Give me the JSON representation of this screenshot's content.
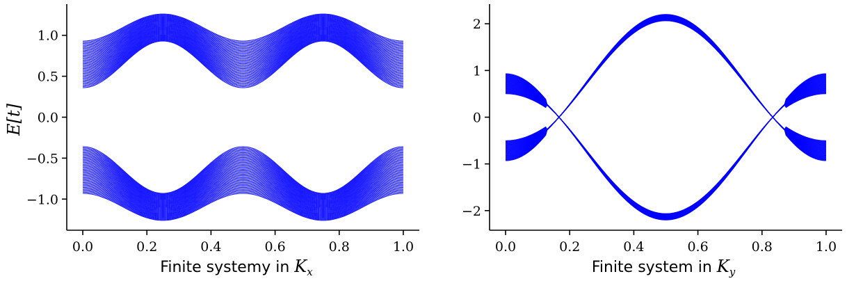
{
  "chart_data": [
    {
      "type": "line",
      "id": "left",
      "xlabel_text": "Finite systemy in ",
      "xlabel_math": "K",
      "xlabel_sub": "x",
      "ylabel_math": "E[t]",
      "xlim": [
        -0.05,
        1.05
      ],
      "ylim": [
        -1.38,
        1.38
      ],
      "xticks": [
        0.0,
        0.2,
        0.4,
        0.6,
        0.8,
        1.0
      ],
      "xtick_labels": [
        "0.0",
        "0.2",
        "0.4",
        "0.6",
        "0.8",
        "1.0"
      ],
      "yticks": [
        -1.0,
        -0.5,
        0.0,
        0.5,
        1.0
      ],
      "ytick_labels": [
        "−1.0",
        "−0.5",
        "0.0",
        "0.5",
        "1.0"
      ],
      "x_range": [
        0.0,
        1.0
      ],
      "series_color": "#0000ff",
      "band_count": 40,
      "bands": {
        "upper_band_top": {
          "min": 0.93,
          "max": 1.26
        },
        "upper_band_bottom": {
          "min": 0.36,
          "max": 0.93
        },
        "lower_band_top": {
          "min": -0.93,
          "max": -0.36
        },
        "lower_band_bottom": {
          "min": -1.26,
          "max": -0.93
        },
        "period": 0.5
      },
      "grid": false,
      "legend": "none"
    },
    {
      "type": "line",
      "id": "right",
      "xlabel_text": "Finite system in ",
      "xlabel_math": "K",
      "xlabel_sub": "y",
      "xlim": [
        -0.05,
        1.05
      ],
      "ylim": [
        -2.42,
        2.42
      ],
      "xticks": [
        0.0,
        0.2,
        0.4,
        0.6,
        0.8,
        1.0
      ],
      "xtick_labels": [
        "0.0",
        "0.2",
        "0.4",
        "0.6",
        "0.8",
        "1.0"
      ],
      "yticks": [
        -2,
        -1,
        0,
        1,
        2
      ],
      "ytick_labels": [
        "−2",
        "−1",
        "0",
        "1",
        "2"
      ],
      "x_range": [
        0.0,
        1.0
      ],
      "series_color": "#0000ff",
      "band_count": 40,
      "features": {
        "dirac_points_x": [
          0.125,
          0.875
        ],
        "dirac_energy": 0.0,
        "edge_band_outer": 0.93,
        "edge_band_inner": 0.36,
        "peak_outer": 2.2,
        "peak_inner": 2.02,
        "peak_x": 0.5
      },
      "grid": false,
      "legend": "none"
    }
  ]
}
